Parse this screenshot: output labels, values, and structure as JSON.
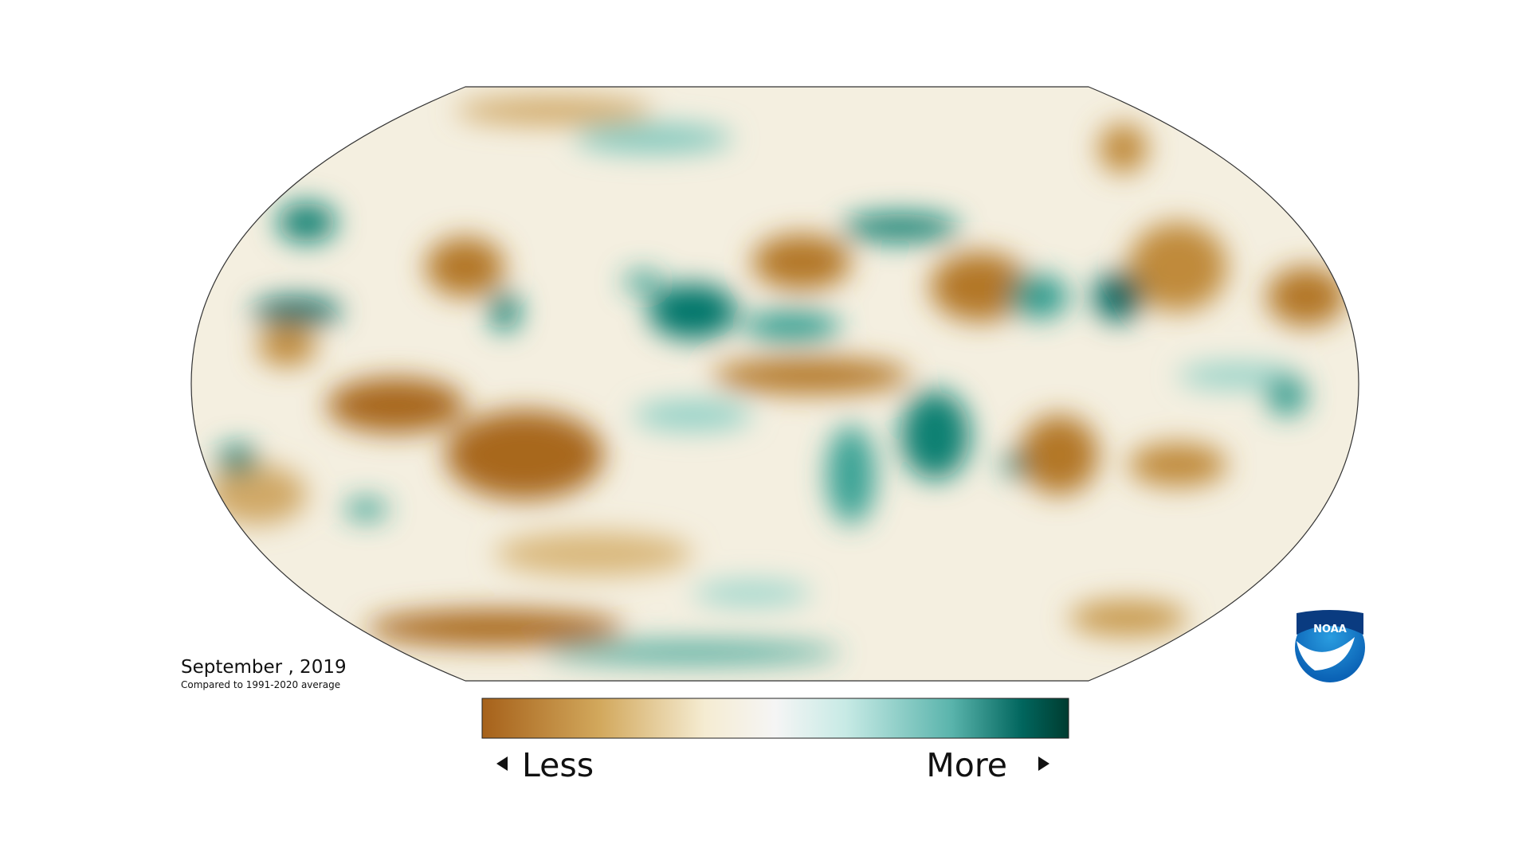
{
  "map": {
    "title": "September , 2019",
    "subtitle": "Compared to 1991-2020 average"
  },
  "legend": {
    "less": "Less",
    "more": "More"
  },
  "logo": {
    "text": "NOAA"
  }
}
